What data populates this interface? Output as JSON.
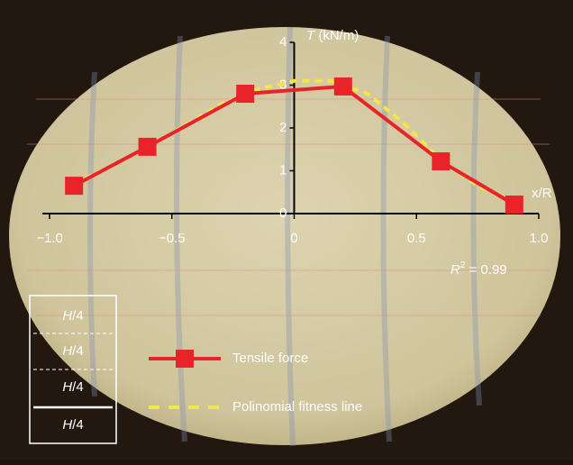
{
  "chart_data": {
    "type": "line",
    "xlabel": "x/R",
    "ylabel": {
      "var": "T",
      "rest": " (kN/m)"
    },
    "xlim": [
      -1,
      1
    ],
    "xticks": [
      {
        "value": -1,
        "label": "−1.0"
      },
      {
        "value": -0.5,
        "label": "−0.5"
      },
      0,
      0.5,
      {
        "value": 1,
        "label": "1.0"
      }
    ],
    "ylim": [
      0,
      4
    ],
    "yticks": [
      0,
      1,
      2,
      3,
      4
    ],
    "series": [
      {
        "name": "Tensile force",
        "color": "#e8232a",
        "marker": "square",
        "x": [
          -0.9,
          -0.6,
          -0.2,
          0.2,
          0.6,
          0.9
        ],
        "values": [
          0.65,
          1.56,
          2.8,
          2.97,
          1.22,
          0.21
        ]
      },
      {
        "name": "Polinomial fitness line",
        "color": "#f2e64a",
        "dashed": true,
        "x": [
          -0.9,
          -0.75,
          -0.6,
          -0.45,
          -0.3,
          -0.15,
          0,
          0.15,
          0.3,
          0.45,
          0.6,
          0.75,
          0.9
        ],
        "values": [
          0.7,
          1.1,
          1.55,
          2.05,
          2.55,
          2.9,
          3.1,
          3.1,
          2.8,
          2.1,
          1.25,
          0.65,
          0.25
        ]
      }
    ],
    "r2_label": {
      "var": "R",
      "sup": "2",
      "rest": " = 0.99"
    },
    "inset_labels": [
      {
        "var": "H",
        "rest": "/4"
      },
      {
        "var": "H",
        "rest": "/4"
      },
      {
        "var": "H",
        "rest": "/4"
      },
      {
        "var": "H",
        "rest": "/4"
      }
    ]
  }
}
